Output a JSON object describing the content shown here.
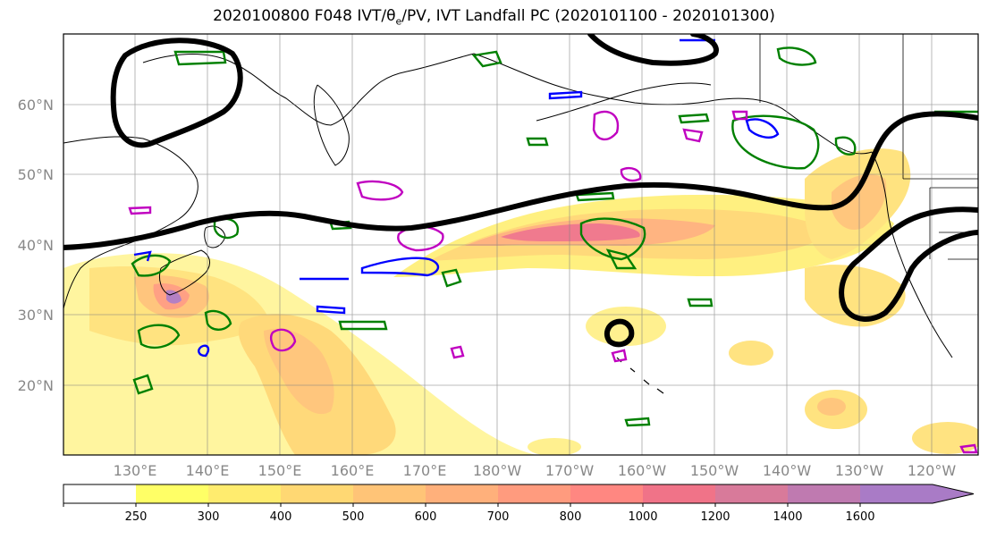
{
  "title": {
    "prefix": "2020100800 F048 IVT/",
    "theta": "θ",
    "theta_sub": "e",
    "suffix": "/PV, IVT Landfall PC (2020101100 - 2020101300)"
  },
  "lat_labels": [
    "60°N",
    "50°N",
    "40°N",
    "30°N",
    "20°N"
  ],
  "lon_labels": [
    "130°E",
    "140°E",
    "150°E",
    "160°E",
    "170°E",
    "180°W",
    "170°W",
    "160°W",
    "150°W",
    "140°W",
    "130°W",
    "120°W"
  ],
  "colorbar": {
    "ticks": [
      "250",
      "300",
      "400",
      "500",
      "600",
      "700",
      "800",
      "1000",
      "1200",
      "1400",
      "1600"
    ],
    "colors": [
      "#ffff66",
      "#ffec6e",
      "#ffd873",
      "#ffc477",
      "#ffb07b",
      "#ff9b7e",
      "#ff8781",
      "#f07388",
      "#d87a9a",
      "#bf7ab0",
      "#a97bc6"
    ]
  },
  "contour_colors": {
    "black": "#000000",
    "green": "#008000",
    "blue": "#0000ff",
    "magenta": "#c000c0"
  }
}
